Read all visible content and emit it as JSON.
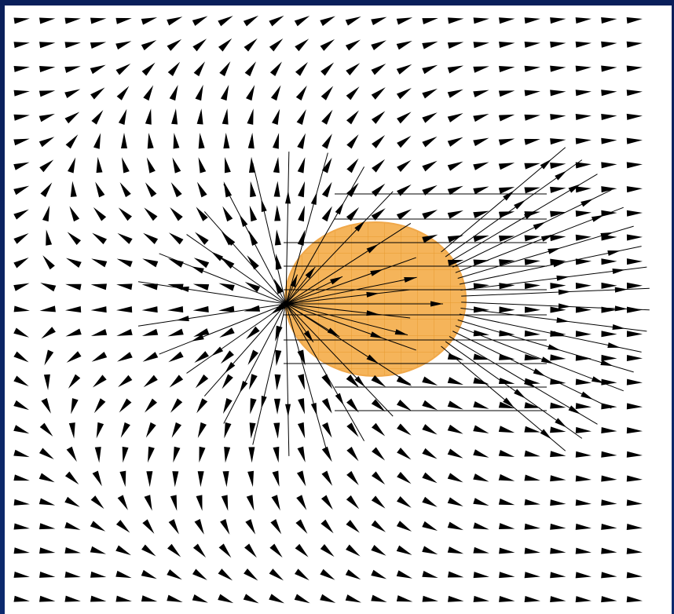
{
  "diagram": {
    "type": "vector-field",
    "description_visible_text": "",
    "colors": {
      "frame": "#0b2160",
      "background": "#ffffff",
      "arrow": "#000000",
      "sphere_fill": "#f5b45a",
      "sphere_grid": "#e89a2e"
    },
    "grid": {
      "columns": 25,
      "rows": 25
    },
    "sphere": {
      "label": ""
    },
    "icons": [
      "arrow-icon",
      "sphere-shape"
    ]
  }
}
